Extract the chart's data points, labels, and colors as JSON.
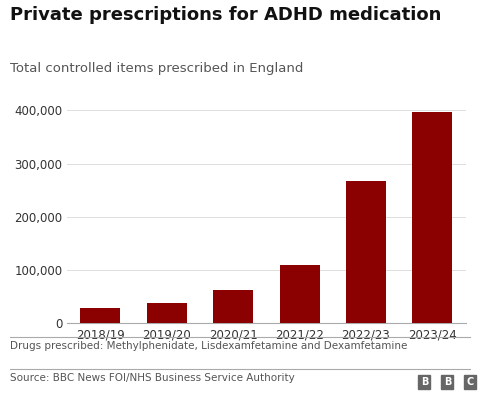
{
  "title": "Private prescriptions for ADHD medication",
  "subtitle": "Total controlled items prescribed in England",
  "categories": [
    "2018/19",
    "2019/20",
    "2020/21",
    "2021/22",
    "2022/23",
    "2023/24"
  ],
  "values": [
    28000,
    38000,
    63000,
    110000,
    268000,
    397000
  ],
  "bar_color": "#8b0000",
  "ylim": [
    0,
    420000
  ],
  "yticks": [
    0,
    100000,
    200000,
    300000,
    400000
  ],
  "footnote1": "Drugs prescribed: Methylphenidate, Lisdexamfetamine and Dexamfetamine",
  "footnote2": "Source: BBC News FOI/NHS Business Service Authority",
  "bbc_letters": [
    "B",
    "B",
    "C"
  ],
  "background_color": "#ffffff",
  "title_fontsize": 13,
  "subtitle_fontsize": 9.5,
  "tick_fontsize": 8.5,
  "footnote_fontsize": 7.5,
  "bar_width": 0.6
}
